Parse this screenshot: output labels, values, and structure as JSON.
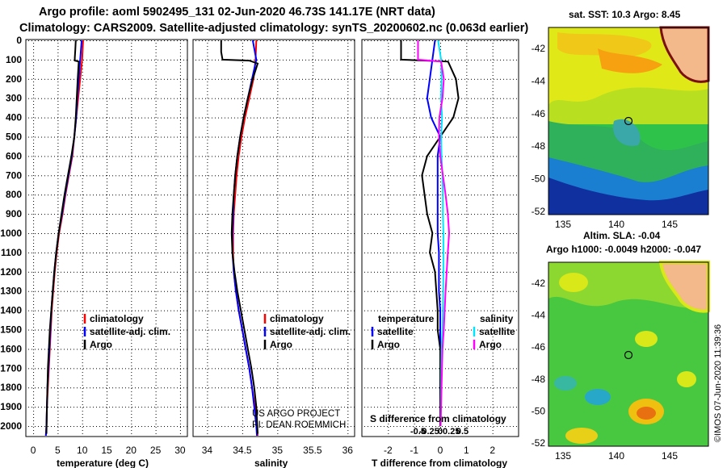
{
  "title_line1": "Argo profile: aoml 5902495_131 02-Jun-2020 46.73S 141.17E (NRT data)",
  "title_line2": "Climatology: CARS2009. Satellite-adjusted climatology: synTS_20200602.nc (0.063d earlier)",
  "colors": {
    "climatology": "#ff0000",
    "satellite": "#0000ff",
    "argo": "#000000",
    "sal_satellite": "#00e5ff",
    "sal_argo": "#ff00ff"
  },
  "panels": {
    "temperature": {
      "xlabel": "temperature (deg C)",
      "xticks": [
        0,
        5,
        10,
        15,
        20,
        25,
        30
      ],
      "legend": [
        "climatology",
        "satellite-adj. clim.",
        "Argo"
      ]
    },
    "salinity": {
      "xlabel": "salinity",
      "xticks": [
        "34",
        "34.5",
        "35",
        "35.5",
        "36"
      ],
      "legend": [
        "climatology",
        "satellite-adj. clim.",
        "Argo"
      ],
      "credit1": "US ARGO PROJECT",
      "credit2": "PI: DEAN ROEMMICH"
    },
    "difference": {
      "xlabel": "T difference from climatology",
      "xticks": [
        "-2",
        "-1",
        "0",
        "1",
        "2"
      ],
      "sticks": [
        "-0.5",
        "-0.25",
        "0",
        "0.25",
        "0.5"
      ],
      "s_label": "S difference from climatology",
      "legend_t_head": "temperature",
      "legend_s_head": "salinity",
      "legend_t": [
        "satellite",
        "Argo"
      ],
      "legend_s": [
        "satellite",
        "Argo"
      ]
    }
  },
  "depth_ticks": [
    "0",
    "100",
    "200",
    "300",
    "400",
    "500",
    "600",
    "700",
    "800",
    "900",
    "1000",
    "1100",
    "1200",
    "1300",
    "1400",
    "1500",
    "1600",
    "1700",
    "1800",
    "1900",
    "2000"
  ],
  "map_top": {
    "title": "sat. SST: 10.3 Argo: 8.45",
    "yticks": [
      "-42",
      "-44",
      "-46",
      "-48",
      "-50",
      "-52"
    ],
    "xticks": [
      "135",
      "140",
      "145"
    ]
  },
  "map_bottom": {
    "title1": "Altim. SLA: -0.04",
    "title2": "Argo h1000: -0.0049 h2000: -0.047",
    "yticks": [
      "-42",
      "-44",
      "-46",
      "-48",
      "-50",
      "-52"
    ],
    "xticks": [
      "135",
      "140",
      "145"
    ]
  },
  "stamp": "©IMOS 07-Jun-2020 11:39:36",
  "chart_data": [
    {
      "type": "line",
      "xlabel": "temperature (deg C)",
      "ylabel": "",
      "xlim": [
        -1.5,
        31.5
      ],
      "ylim": [
        2050,
        0
      ],
      "series": [
        {
          "name": "climatology",
          "x": [
            10.2,
            10.0,
            9.6,
            9.2,
            8.8,
            8.4,
            8.0,
            7.3,
            6.6,
            6.0,
            5.3,
            4.8,
            4.4,
            4.1,
            3.8,
            3.6,
            3.4,
            3.2,
            3.0,
            2.8,
            2.7,
            2.6
          ],
          "y": [
            0,
            100,
            200,
            300,
            400,
            500,
            600,
            700,
            800,
            900,
            1000,
            1100,
            1200,
            1300,
            1400,
            1500,
            1600,
            1700,
            1800,
            1900,
            2000,
            2050
          ]
        },
        {
          "name": "satellite-adj. clim.",
          "x": [
            9.9,
            9.6,
            9.3,
            9.0,
            8.8,
            8.4,
            7.9,
            7.2,
            6.5,
            5.9,
            5.2,
            4.7,
            4.3,
            4.0,
            3.7,
            3.5,
            3.3,
            3.1,
            2.9,
            2.8,
            2.7,
            2.6
          ],
          "y": [
            0,
            100,
            200,
            300,
            400,
            500,
            600,
            700,
            800,
            900,
            1000,
            1100,
            1200,
            1300,
            1400,
            1500,
            1600,
            1700,
            1800,
            1900,
            2000,
            2050
          ]
        },
        {
          "name": "Argo",
          "x": [
            8.7,
            8.6,
            8.5,
            8.5,
            9.3,
            9.1,
            8.9,
            8.7,
            8.4,
            7.8,
            7.1,
            6.4,
            5.8,
            5.2,
            4.7,
            4.3,
            4.0,
            3.7,
            3.4,
            3.2,
            3.0,
            2.9,
            2.8,
            2.7
          ],
          "y": [
            0,
            50,
            90,
            105,
            110,
            200,
            300,
            400,
            500,
            600,
            700,
            800,
            900,
            1000,
            1100,
            1200,
            1300,
            1400,
            1500,
            1600,
            1700,
            1800,
            1900,
            2040
          ]
        }
      ]
    },
    {
      "type": "line",
      "xlabel": "salinity",
      "ylabel": "",
      "xlim": [
        33.8,
        36.1
      ],
      "ylim": [
        2050,
        0
      ],
      "series": [
        {
          "name": "climatology",
          "x": [
            34.7,
            34.69,
            34.66,
            34.6,
            34.54,
            34.49,
            34.45,
            34.42,
            34.4,
            34.38,
            34.37,
            34.37,
            34.38,
            34.41,
            34.45,
            34.5,
            34.55,
            34.6,
            34.64,
            34.68,
            34.71,
            34.72
          ],
          "y": [
            0,
            100,
            200,
            300,
            400,
            500,
            600,
            700,
            800,
            900,
            1000,
            1100,
            1200,
            1300,
            1400,
            1500,
            1600,
            1700,
            1800,
            1900,
            2000,
            2050
          ]
        },
        {
          "name": "satellite-adj. clim.",
          "x": [
            34.65,
            34.7,
            34.64,
            34.58,
            34.52,
            34.47,
            34.43,
            34.4,
            34.38,
            34.37,
            34.36,
            34.36,
            34.38,
            34.41,
            34.45,
            34.5,
            34.55,
            34.6,
            34.64,
            34.67,
            34.7,
            34.71
          ],
          "y": [
            0,
            100,
            200,
            300,
            400,
            500,
            600,
            700,
            800,
            900,
            1000,
            1100,
            1200,
            1300,
            1400,
            1500,
            1600,
            1700,
            1800,
            1900,
            2000,
            2050
          ]
        },
        {
          "name": "Argo",
          "x": [
            34.2,
            34.2,
            34.22,
            34.6,
            34.72,
            34.65,
            34.58,
            34.52,
            34.47,
            34.43,
            34.4,
            34.38,
            34.36,
            34.35,
            34.36,
            34.39,
            34.43,
            34.48,
            34.53,
            34.58,
            34.63,
            34.67,
            34.7,
            34.72
          ],
          "y": [
            0,
            60,
            100,
            105,
            120,
            200,
            300,
            400,
            500,
            600,
            700,
            800,
            900,
            1000,
            1100,
            1200,
            1300,
            1400,
            1500,
            1600,
            1700,
            1800,
            1900,
            2040
          ]
        }
      ]
    },
    {
      "type": "line",
      "xlabel": "T difference from climatology",
      "ylabel": "",
      "xlim": [
        -3,
        3
      ],
      "ylim": [
        2050,
        0
      ],
      "series": [
        {
          "name": "temperature satellite",
          "x": [
            -0.2,
            -0.3,
            -0.4,
            -0.5,
            -0.35,
            0.0,
            -0.1,
            -0.1,
            -0.1,
            -0.1,
            -0.1,
            -0.05,
            -0.05,
            -0.05,
            0.0,
            0.0,
            0.0,
            0.0,
            0.0,
            0.0,
            0.0
          ],
          "y": [
            0,
            100,
            200,
            300,
            400,
            500,
            600,
            700,
            800,
            900,
            1000,
            1100,
            1200,
            1300,
            1400,
            1500,
            1600,
            1700,
            1800,
            1900,
            2000
          ]
        },
        {
          "name": "temperature Argo",
          "x": [
            -1.5,
            -1.5,
            0.3,
            0.6,
            0.7,
            0.5,
            0.0,
            -0.5,
            -0.7,
            -0.6,
            -0.5,
            -0.3,
            -0.4,
            -0.2,
            -0.1,
            -0.1,
            0.0,
            0.0,
            0.0,
            0.0
          ],
          "y": [
            0,
            100,
            110,
            200,
            300,
            400,
            500,
            600,
            700,
            800,
            900,
            1000,
            1100,
            1200,
            1400,
            1500,
            1600,
            1700,
            1900,
            2000
          ]
        },
        {
          "name": "salinity satellite",
          "x": [
            -0.05,
            0.02,
            0.03,
            0.02,
            0.04,
            0.02,
            0.03,
            0.05,
            0.06,
            0.06,
            0.07,
            0.07,
            0.07,
            0.06,
            0.05,
            0.03,
            0.02,
            0.01
          ],
          "y": [
            0,
            100,
            200,
            300,
            400,
            500,
            600,
            700,
            800,
            900,
            1000,
            1100,
            1200,
            1400,
            1500,
            1600,
            1800,
            2000
          ]
        },
        {
          "name": "salinity Argo",
          "x": [
            -0.5,
            -0.5,
            0.02,
            0.08,
            0.05,
            -0.02,
            -0.03,
            0.0,
            0.06,
            0.12,
            0.17,
            0.2,
            0.17,
            0.12,
            0.08,
            0.05,
            0.03,
            0.01
          ],
          "y": [
            0,
            100,
            110,
            200,
            300,
            400,
            500,
            600,
            700,
            800,
            900,
            1000,
            1100,
            1300,
            1500,
            1600,
            1800,
            2000
          ]
        }
      ]
    }
  ]
}
